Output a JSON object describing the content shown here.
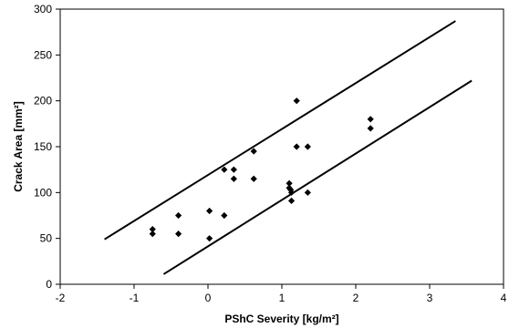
{
  "chart_data": {
    "type": "scatter",
    "title": "",
    "xlabel": "PShC Severity [kg/m²]",
    "ylabel": "Crack Area [mm²]",
    "xlim": [
      -2,
      4
    ],
    "ylim": [
      0,
      300
    ],
    "x_ticks": [
      -2,
      -1,
      0,
      1,
      2,
      3,
      4
    ],
    "y_ticks": [
      0,
      50,
      100,
      150,
      200,
      250,
      300
    ],
    "grid": false,
    "legend": "none",
    "marker": "diamond",
    "marker_color": "#000000",
    "points": [
      {
        "x": -0.75,
        "y": 60
      },
      {
        "x": -0.75,
        "y": 55
      },
      {
        "x": -0.4,
        "y": 75
      },
      {
        "x": -0.4,
        "y": 55
      },
      {
        "x": 0.02,
        "y": 80
      },
      {
        "x": 0.02,
        "y": 50
      },
      {
        "x": 0.22,
        "y": 125
      },
      {
        "x": 0.22,
        "y": 75
      },
      {
        "x": 0.35,
        "y": 125
      },
      {
        "x": 0.35,
        "y": 115
      },
      {
        "x": 0.62,
        "y": 145
      },
      {
        "x": 0.62,
        "y": 115
      },
      {
        "x": 1.1,
        "y": 110
      },
      {
        "x": 1.1,
        "y": 105
      },
      {
        "x": 1.12,
        "y": 103
      },
      {
        "x": 1.13,
        "y": 100
      },
      {
        "x": 1.13,
        "y": 91
      },
      {
        "x": 1.2,
        "y": 200
      },
      {
        "x": 1.2,
        "y": 150
      },
      {
        "x": 1.35,
        "y": 150
      },
      {
        "x": 1.35,
        "y": 100
      },
      {
        "x": 2.2,
        "y": 180
      },
      {
        "x": 2.2,
        "y": 170
      }
    ],
    "lines": [
      {
        "x": [
          -1.4,
          3.35
        ],
        "y": [
          49,
          287
        ]
      },
      {
        "x": [
          -0.6,
          3.57
        ],
        "y": [
          11,
          222
        ]
      }
    ]
  }
}
